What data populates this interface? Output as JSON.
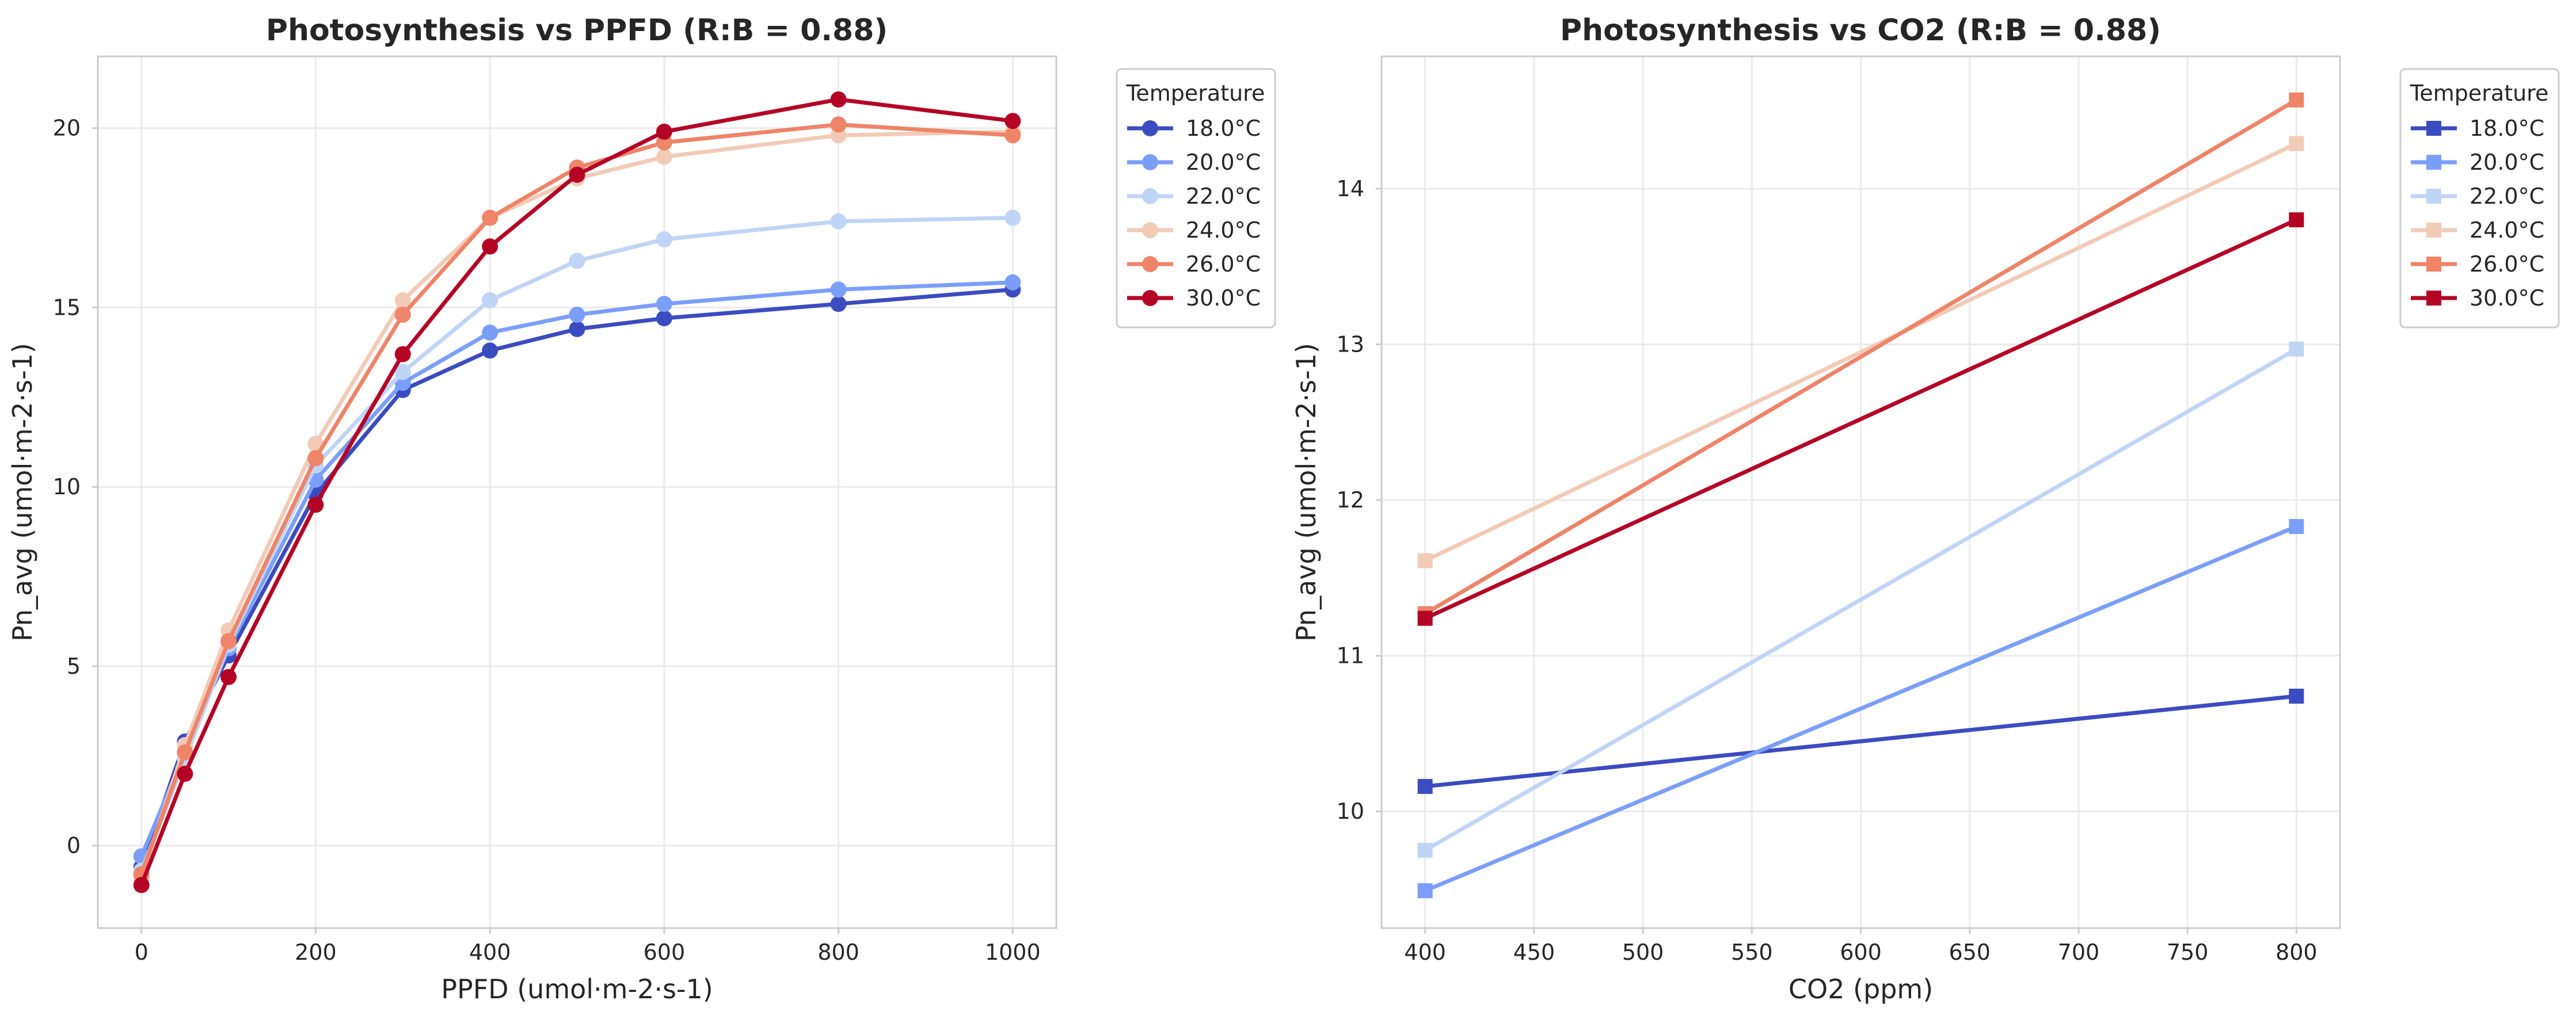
{
  "chart_data": [
    {
      "type": "line",
      "title": "Photosynthesis vs PPFD (R:B = 0.88)",
      "xlabel": "PPFD (umol·m-2·s-1)",
      "ylabel": "Pn_avg (umol·m-2·s-1)",
      "xlim": [
        -50,
        1050
      ],
      "ylim": [
        -2.3,
        22
      ],
      "xticks": [
        0,
        200,
        400,
        600,
        800,
        1000
      ],
      "yticks": [
        0,
        5,
        10,
        15,
        20
      ],
      "marker": "circle",
      "grid": true,
      "legend": {
        "title": "Temperature",
        "placement": "outside-top-right"
      },
      "x": [
        0,
        50,
        100,
        200,
        300,
        400,
        500,
        600,
        800,
        1000
      ],
      "series": [
        {
          "name": "18.0°C",
          "color": "#3b4cc0",
          "values": [
            -0.6,
            2.9,
            5.3,
            9.8,
            12.7,
            13.8,
            14.4,
            14.7,
            15.1,
            15.5
          ]
        },
        {
          "name": "20.0°C",
          "color": "#7b9ff9",
          "values": [
            -0.3,
            2.6,
            5.5,
            10.2,
            12.9,
            14.3,
            14.8,
            15.1,
            15.5,
            15.7
          ]
        },
        {
          "name": "22.0°C",
          "color": "#c0d4f5",
          "values": [
            -0.7,
            2.4,
            5.6,
            10.6,
            13.2,
            15.2,
            16.3,
            16.9,
            17.4,
            17.5
          ]
        },
        {
          "name": "24.0°C",
          "color": "#f2cbb7",
          "values": [
            -0.9,
            2.8,
            6.0,
            11.2,
            15.2,
            17.5,
            18.6,
            19.2,
            19.8,
            19.9
          ]
        },
        {
          "name": "26.0°C",
          "color": "#ee8468",
          "values": [
            -0.8,
            2.6,
            5.7,
            10.8,
            14.8,
            17.5,
            18.9,
            19.6,
            20.1,
            19.8
          ]
        },
        {
          "name": "30.0°C",
          "color": "#b40426",
          "values": [
            -1.1,
            2.0,
            4.7,
            9.5,
            13.7,
            16.7,
            18.7,
            19.9,
            20.8,
            20.2
          ]
        }
      ]
    },
    {
      "type": "line",
      "title": "Photosynthesis vs CO2 (R:B = 0.88)",
      "xlabel": "CO2 (ppm)",
      "ylabel": "Pn_avg (umol·m-2·s-1)",
      "xlim": [
        380,
        820
      ],
      "ylim": [
        9.25,
        14.85
      ],
      "xticks": [
        400,
        450,
        500,
        550,
        600,
        650,
        700,
        750,
        800
      ],
      "yticks": [
        10,
        11,
        12,
        13,
        14
      ],
      "marker": "square",
      "grid": true,
      "legend": {
        "title": "Temperature",
        "placement": "outside-top-right"
      },
      "x": [
        400,
        800
      ],
      "series": [
        {
          "name": "18.0°C",
          "color": "#3b4cc0",
          "values": [
            10.16,
            10.74
          ]
        },
        {
          "name": "20.0°C",
          "color": "#7b9ff9",
          "values": [
            9.49,
            11.83
          ]
        },
        {
          "name": "22.0°C",
          "color": "#c0d4f5",
          "values": [
            9.75,
            12.97
          ]
        },
        {
          "name": "24.0°C",
          "color": "#f2cbb7",
          "values": [
            11.61,
            14.29
          ]
        },
        {
          "name": "26.0°C",
          "color": "#ee8468",
          "values": [
            11.27,
            14.57
          ]
        },
        {
          "name": "30.0°C",
          "color": "#b40426",
          "values": [
            11.24,
            13.8
          ]
        }
      ]
    }
  ]
}
